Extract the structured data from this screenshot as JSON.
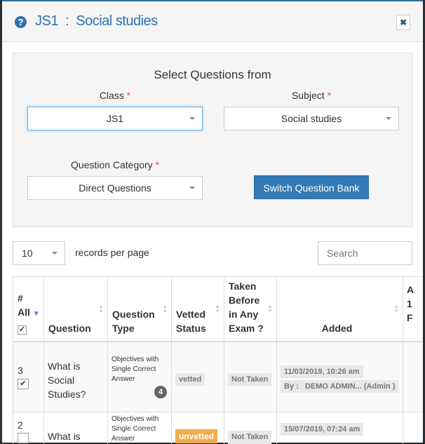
{
  "header": {
    "title": "JS1  :  Social studies",
    "help_icon": "question-circle-icon",
    "close_icon": "times-icon"
  },
  "filters": {
    "title": "Select Questions from",
    "class_label": "Class",
    "class_value": "JS1",
    "subject_label": "Subject",
    "subject_value": "Social studies",
    "category_label": "Question Category",
    "category_value": "Direct Questions",
    "required_mark": "*",
    "switch_button": "Switch Question Bank"
  },
  "table_controls": {
    "page_length": "10",
    "records_per_page": "records per page",
    "search_placeholder": "Search"
  },
  "table": {
    "headers": {
      "num": "#",
      "all": "All",
      "question": "Question",
      "type": "Question Type",
      "vetted": "Vetted Status",
      "taken": "Taken Before in Any Exam ?",
      "added": "Added",
      "partial": "A 1 F"
    },
    "rows": [
      {
        "num": "3",
        "question": "What is Social Studies?",
        "type": "Objectives with Single Correct Answer",
        "options_count": "4",
        "vetted": "vetted",
        "taken": "Not Taken",
        "added_date": "11/03/2019, 10:26 am",
        "added_by": "By :   DEMO ADMIN... (Admin )",
        "checked": true
      },
      {
        "num": "2",
        "question": "What is",
        "type": "Objectives with Single Correct Answer",
        "vetted": "unvetted",
        "taken": "Not Taken",
        "added_date": "15/07/2019, 07:24 am",
        "checked": false
      }
    ]
  },
  "colors": {
    "primary": "#337ab7",
    "unvetted": "#f0ad4e"
  }
}
